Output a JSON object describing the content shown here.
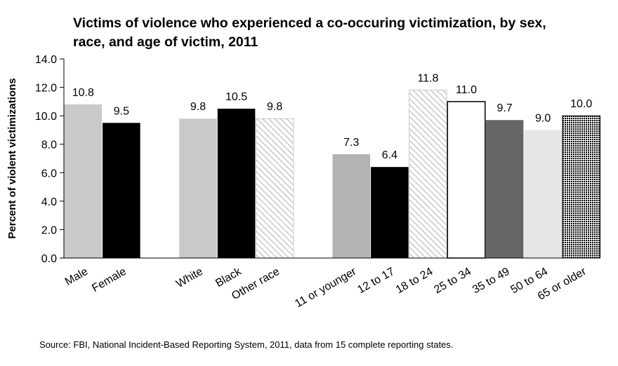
{
  "chart_data": {
    "type": "bar",
    "title": "Victims of violence who experienced a co-occuring victimization, by sex, race, and age of victim, 2011",
    "xlabel": "",
    "ylabel": "Percent of violent victimizations",
    "ylim": [
      0,
      14
    ],
    "ytick_step": 2,
    "ytick_labels": [
      "0.0",
      "2.0",
      "4.0",
      "6.0",
      "8.0",
      "10.0",
      "12.0",
      "14.0"
    ],
    "grid": false,
    "legend": "none",
    "groups": [
      {
        "bars": [
          {
            "category": "Male",
            "value": 10.8,
            "label": "10.8",
            "fill": "#c9c9c9",
            "pattern": "solid"
          },
          {
            "category": "Female",
            "value": 9.5,
            "label": "9.5",
            "fill": "#000000",
            "pattern": "solid"
          }
        ]
      },
      {
        "bars": [
          {
            "category": "White",
            "value": 9.8,
            "label": "9.8",
            "fill": "#c9c9c9",
            "pattern": "solid"
          },
          {
            "category": "Black",
            "value": 10.5,
            "label": "10.5",
            "fill": "#000000",
            "pattern": "solid"
          },
          {
            "category": "Other race",
            "value": 9.8,
            "label": "9.8",
            "fill": "#c9c9c9",
            "pattern": "diagonal-hatch"
          }
        ]
      },
      {
        "bars": [
          {
            "category": "11 or younger",
            "value": 7.3,
            "label": "7.3",
            "fill": "#b3b3b3",
            "pattern": "solid"
          },
          {
            "category": "12 to 17",
            "value": 6.4,
            "label": "6.4",
            "fill": "#000000",
            "pattern": "solid"
          },
          {
            "category": "18 to 24",
            "value": 11.8,
            "label": "11.8",
            "fill": "#c9c9c9",
            "pattern": "diagonal-hatch"
          },
          {
            "category": "25 to 34",
            "value": 11.0,
            "label": "11.0",
            "fill": "#ffffff",
            "pattern": "outline"
          },
          {
            "category": "35 to 49",
            "value": 9.7,
            "label": "9.7",
            "fill": "#666666",
            "pattern": "solid"
          },
          {
            "category": "50 to 64",
            "value": 9.0,
            "label": "9.0",
            "fill": "#e6e6e6",
            "pattern": "solid"
          },
          {
            "category": "65 or older",
            "value": 10.0,
            "label": "10.0",
            "fill": "#000000",
            "pattern": "dots"
          }
        ]
      }
    ]
  },
  "source": "Source: FBI, National Incident-Based Reporting System, 2011, data from 15 complete reporting states."
}
